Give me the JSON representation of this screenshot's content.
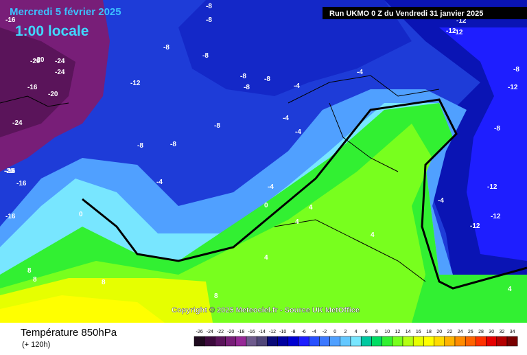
{
  "header": {
    "title": "Mercredi 5 février 2025",
    "subtitle": "1:00 locale",
    "run": "Run UKMO 0 Z du Vendredi 31 janvier 2025"
  },
  "copyright": "Copyright © 2025 Meteociel.fr - Source UK MetOffice",
  "footer": {
    "title": "Température 850hPa",
    "lead": "(+ 120h)"
  },
  "legend": {
    "values": [
      -26,
      -24,
      -22,
      -20,
      -18,
      -16,
      -14,
      -12,
      -10,
      -8,
      -6,
      -4,
      -2,
      0,
      2,
      4,
      6,
      8,
      10,
      12,
      14,
      16,
      18,
      20,
      22,
      24,
      26,
      28,
      30,
      32,
      34
    ],
    "colors": [
      "#1e0a1e",
      "#3c0a3c",
      "#5a145a",
      "#781e78",
      "#962896",
      "#6e5a8c",
      "#504678",
      "#0a0a78",
      "#0000a0",
      "#0000d2",
      "#1e1eff",
      "#2850ff",
      "#3c78ff",
      "#50a0ff",
      "#64c8ff",
      "#78e6ff",
      "#00c8a0",
      "#00dc64",
      "#32f032",
      "#78ff1e",
      "#b4ff14",
      "#e6ff00",
      "#ffff00",
      "#ffdc00",
      "#ffb400",
      "#ff8c00",
      "#ff6400",
      "#ff3200",
      "#e60000",
      "#b40000",
      "#780000"
    ]
  },
  "map_labels": [
    "-16",
    "-20",
    "-24",
    "-16",
    "-20",
    "-24",
    "-16",
    "-20",
    "-24",
    "-20",
    "-16",
    "-16",
    "-12",
    "-12",
    "-8",
    "-8",
    "-8",
    "-8",
    "-8",
    "-8",
    "-8",
    "-8",
    "-8",
    "-8",
    "-4",
    "-4",
    "-4",
    "-4",
    "-4",
    "-4",
    "0",
    "0",
    "4",
    "4",
    "4",
    "4",
    "8",
    "8",
    "8",
    "-12",
    "-12",
    "-12",
    "-12",
    "-12",
    "-12",
    "-8",
    "-8",
    "-4",
    "8",
    "4"
  ]
}
